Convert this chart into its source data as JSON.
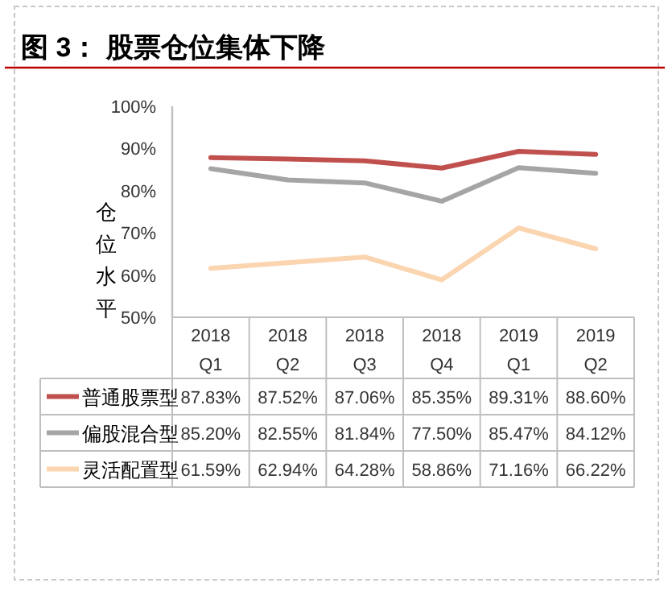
{
  "chart_data": {
    "type": "line",
    "title": "图 3：  股票仓位集体下降",
    "ylabel": "仓位水平",
    "categories": [
      "2018 Q1",
      "2018 Q2",
      "2018 Q3",
      "2018 Q4",
      "2019 Q1",
      "2019 Q2"
    ],
    "series": [
      {
        "name": "普通股票型",
        "color": "#c0504d",
        "values": [
          87.83,
          87.52,
          87.06,
          85.35,
          89.31,
          88.6
        ],
        "value_labels": [
          "87.83%",
          "87.52%",
          "87.06%",
          "85.35%",
          "89.31%",
          "88.60%"
        ]
      },
      {
        "name": "偏股混合型",
        "color": "#a5a5a5",
        "values": [
          85.2,
          82.55,
          81.84,
          77.5,
          85.47,
          84.12
        ],
        "value_labels": [
          "85.20%",
          "82.55%",
          "81.84%",
          "77.50%",
          "85.47%",
          "84.12%"
        ]
      },
      {
        "name": "灵活配置型",
        "color": "#fbd4b0",
        "values": [
          61.59,
          62.94,
          64.28,
          58.86,
          71.16,
          66.22
        ],
        "value_labels": [
          "61.59%",
          "62.94%",
          "64.28%",
          "58.86%",
          "71.16%",
          "66.22%"
        ]
      }
    ],
    "ylim": [
      50,
      100
    ],
    "yticks": [
      {
        "value": 50,
        "label": "50%"
      },
      {
        "value": 60,
        "label": "60%"
      },
      {
        "value": 70,
        "label": "70%"
      },
      {
        "value": 80,
        "label": "80%"
      },
      {
        "value": 90,
        "label": "90%"
      },
      {
        "value": 100,
        "label": "100%"
      }
    ],
    "legend": "bottom"
  }
}
